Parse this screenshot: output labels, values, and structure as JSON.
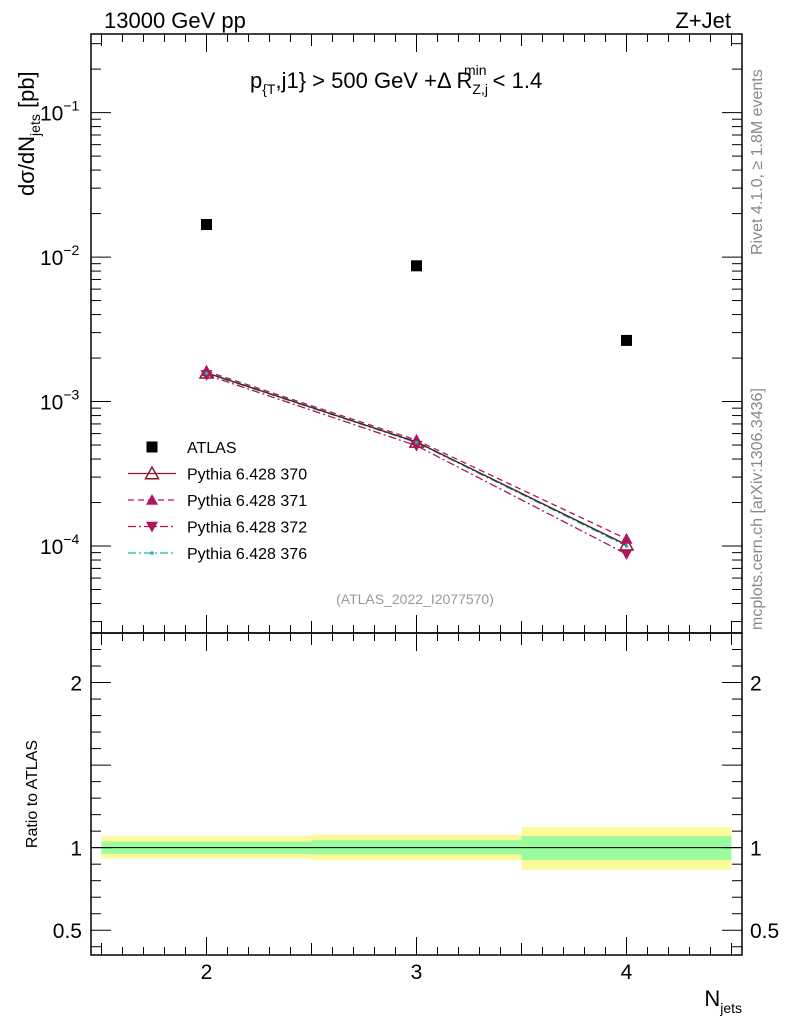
{
  "header": {
    "left_title": "13000 GeV pp",
    "right_title": "Z+Jet"
  },
  "side_labels": {
    "rivet": "Rivet 4.1.0, ≥ 1.8M events",
    "mcplots": "mcplots.cern.ch [arXiv:1306.3436]"
  },
  "colors": {
    "data": "#000000",
    "mc370": "#8b1a2b",
    "mc371": "#b0155c",
    "mc372": "#b0155c",
    "mc376": "#20b2aa",
    "band_inner": "#9cfb9c",
    "band_outer": "#fbfb9c",
    "side_text": "#888888"
  },
  "chart_data": [
    {
      "type": "scatter",
      "panel": "main",
      "title": "p_{T},j1} > 500 GeV +Δ R_{Z,j}^{min} < 1.4",
      "title_parts": {
        "p": "p",
        "psub": "{T",
        "rest": ",j1} > 500 GeV +Δ R",
        "rsub": "Z,j",
        "rsup": "min",
        "tail": " < 1.4"
      },
      "ylabel": "dσ/dN",
      "ylabel_sub": "jets",
      "ylabel_unit": " [pb]",
      "yscale": "log",
      "ylim": [
        2.5e-05,
        0.35
      ],
      "xlim": [
        1.45,
        4.55
      ],
      "ytick_labels": [
        {
          "value": 0.1,
          "base": "10",
          "exp": "−1"
        },
        {
          "value": 0.01,
          "base": "10",
          "exp": "−2"
        },
        {
          "value": 0.001,
          "base": "10",
          "exp": "−3"
        },
        {
          "value": 0.0001,
          "base": "10",
          "exp": "−4"
        }
      ],
      "watermark": "(ATLAS_2022_I2077570)",
      "x": [
        2,
        3,
        4
      ],
      "series": [
        {
          "name": "ATLAS",
          "values": [
            0.0168,
            0.0087,
            0.00265
          ],
          "style": "data"
        },
        {
          "name": "Pythia 6.428 370",
          "values": [
            0.00158,
            0.000525,
            0.000102
          ],
          "style": "open-triangle-solid"
        },
        {
          "name": "Pythia 6.428 371",
          "values": [
            0.00162,
            0.00054,
            0.000112
          ],
          "style": "triangle-dashed"
        },
        {
          "name": "Pythia 6.428 372",
          "values": [
            0.00153,
            0.000495,
            8.8e-05
          ],
          "style": "inverted-triangle-dashdot"
        },
        {
          "name": "Pythia 6.428 376",
          "values": [
            0.00157,
            0.00052,
            0.0001
          ],
          "style": "dot-dashdot"
        }
      ],
      "legend": [
        "ATLAS",
        "Pythia 6.428 370",
        "Pythia 6.428 371",
        "Pythia 6.428 372",
        "Pythia 6.428 376"
      ],
      "legend_position": "bottom-left"
    },
    {
      "type": "area",
      "panel": "ratio",
      "ylabel": "Ratio to ATLAS",
      "xlabel": "N",
      "xlabel_sub": "jets",
      "ylim": [
        0.35,
        2.3
      ],
      "xlim": [
        1.45,
        4.55
      ],
      "yticks": [
        {
          "value": 0.5,
          "label": "0.5"
        },
        {
          "value": 1,
          "label": "1"
        },
        {
          "value": 2,
          "label": "2"
        }
      ],
      "xticks": [
        {
          "value": 2,
          "label": "2"
        },
        {
          "value": 3,
          "label": "3"
        },
        {
          "value": 4,
          "label": "4"
        }
      ],
      "bins": [
        [
          1.5,
          2.5
        ],
        [
          2.5,
          3.5
        ],
        [
          3.5,
          4.5
        ]
      ],
      "band_inner": [
        [
          0.963,
          1.037
        ],
        [
          0.96,
          1.045
        ],
        [
          0.925,
          1.07
        ]
      ],
      "band_outer": [
        [
          0.935,
          1.07
        ],
        [
          0.925,
          1.08
        ],
        [
          0.865,
          1.125
        ]
      ],
      "reference": 1
    }
  ]
}
